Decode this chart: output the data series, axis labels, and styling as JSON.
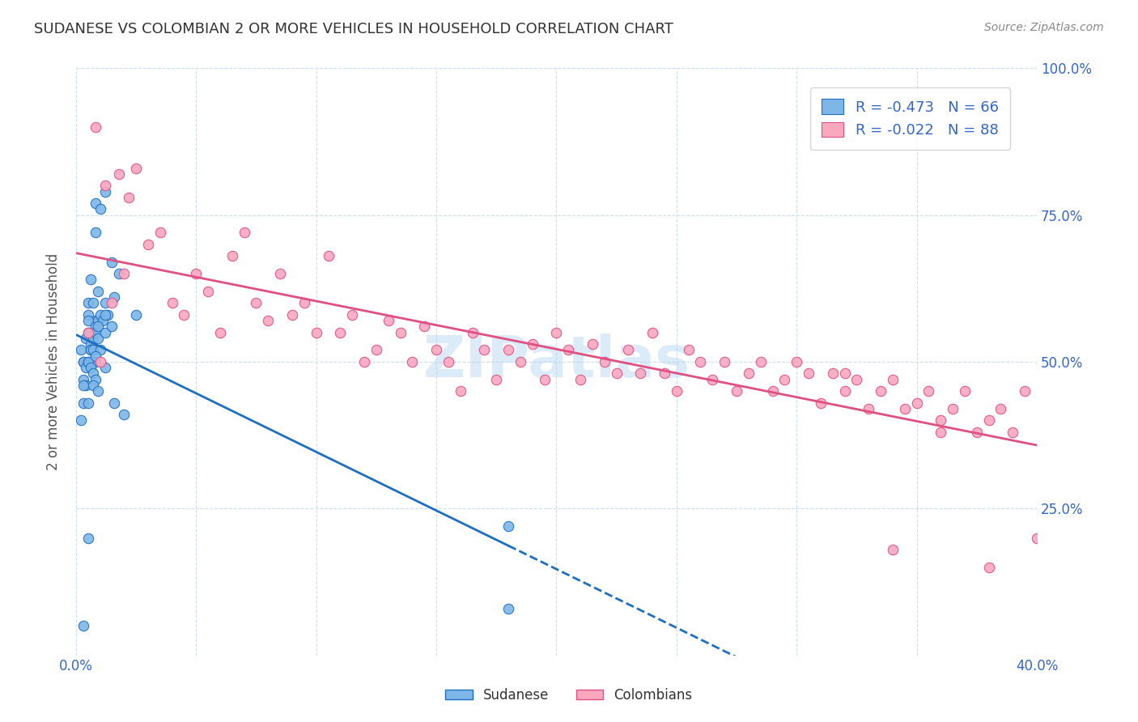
{
  "title": "SUDANESE VS COLOMBIAN 2 OR MORE VEHICLES IN HOUSEHOLD CORRELATION CHART",
  "source": "Source: ZipAtlas.com",
  "xlabel": "",
  "ylabel": "2 or more Vehicles in Household",
  "xlim": [
    0.0,
    0.4
  ],
  "ylim": [
    0.0,
    1.0
  ],
  "xticks": [
    0.0,
    0.05,
    0.1,
    0.15,
    0.2,
    0.25,
    0.3,
    0.35,
    0.4
  ],
  "yticks": [
    0.0,
    0.25,
    0.5,
    0.75,
    1.0
  ],
  "xtick_labels": [
    "0.0%",
    "",
    "",
    "",
    "",
    "",
    "",
    "",
    "40.0%"
  ],
  "ytick_labels": [
    "",
    "25.0%",
    "50.0%",
    "75.0%",
    "100.0%"
  ],
  "legend_blue_r": "R = -0.473",
  "legend_blue_n": "N = 66",
  "legend_pink_r": "R = -0.022",
  "legend_pink_n": "N = 88",
  "blue_color": "#7EB6E8",
  "pink_color": "#F9A8C0",
  "blue_line_color": "#1E6FBF",
  "pink_line_color": "#E05080",
  "watermark": "ZIPatlas",
  "watermark_color": "#B8D8F0",
  "sudanese_x": [
    0.005,
    0.008,
    0.01,
    0.012,
    0.008,
    0.007,
    0.006,
    0.005,
    0.005,
    0.003,
    0.004,
    0.003,
    0.007,
    0.008,
    0.006,
    0.009,
    0.007,
    0.004,
    0.002,
    0.015,
    0.005,
    0.003,
    0.006,
    0.008,
    0.007,
    0.005,
    0.006,
    0.009,
    0.012,
    0.008,
    0.01,
    0.006,
    0.013,
    0.011,
    0.007,
    0.008,
    0.009,
    0.012,
    0.016,
    0.018,
    0.005,
    0.004,
    0.006,
    0.003,
    0.007,
    0.01,
    0.009,
    0.006,
    0.008,
    0.012,
    0.003,
    0.002,
    0.025,
    0.015,
    0.007,
    0.008,
    0.007,
    0.005,
    0.012,
    0.009,
    0.016,
    0.02,
    0.18,
    0.18,
    0.005,
    0.003
  ],
  "sudanese_y": [
    0.6,
    0.77,
    0.76,
    0.79,
    0.72,
    0.55,
    0.64,
    0.55,
    0.58,
    0.5,
    0.54,
    0.5,
    0.6,
    0.57,
    0.53,
    0.62,
    0.52,
    0.49,
    0.52,
    0.67,
    0.57,
    0.47,
    0.55,
    0.56,
    0.54,
    0.5,
    0.52,
    0.57,
    0.6,
    0.55,
    0.58,
    0.5,
    0.58,
    0.57,
    0.5,
    0.5,
    0.56,
    0.58,
    0.61,
    0.65,
    0.5,
    0.46,
    0.52,
    0.46,
    0.52,
    0.52,
    0.54,
    0.49,
    0.51,
    0.55,
    0.43,
    0.4,
    0.58,
    0.56,
    0.48,
    0.47,
    0.46,
    0.43,
    0.49,
    0.45,
    0.43,
    0.41,
    0.22,
    0.08,
    0.2,
    0.05
  ],
  "colombian_x": [
    0.005,
    0.01,
    0.015,
    0.02,
    0.008,
    0.012,
    0.018,
    0.022,
    0.025,
    0.03,
    0.035,
    0.04,
    0.045,
    0.05,
    0.055,
    0.06,
    0.065,
    0.07,
    0.075,
    0.08,
    0.085,
    0.09,
    0.095,
    0.1,
    0.105,
    0.11,
    0.115,
    0.12,
    0.125,
    0.13,
    0.135,
    0.14,
    0.145,
    0.15,
    0.155,
    0.16,
    0.165,
    0.17,
    0.175,
    0.18,
    0.185,
    0.19,
    0.195,
    0.2,
    0.205,
    0.21,
    0.215,
    0.22,
    0.225,
    0.23,
    0.235,
    0.24,
    0.245,
    0.25,
    0.255,
    0.26,
    0.265,
    0.27,
    0.275,
    0.28,
    0.285,
    0.29,
    0.295,
    0.3,
    0.305,
    0.31,
    0.315,
    0.32,
    0.325,
    0.33,
    0.335,
    0.34,
    0.345,
    0.35,
    0.355,
    0.36,
    0.365,
    0.37,
    0.375,
    0.38,
    0.385,
    0.39,
    0.395,
    0.4,
    0.38,
    0.36,
    0.34,
    0.32
  ],
  "colombian_y": [
    0.55,
    0.5,
    0.6,
    0.65,
    0.9,
    0.8,
    0.82,
    0.78,
    0.83,
    0.7,
    0.72,
    0.6,
    0.58,
    0.65,
    0.62,
    0.55,
    0.68,
    0.72,
    0.6,
    0.57,
    0.65,
    0.58,
    0.6,
    0.55,
    0.68,
    0.55,
    0.58,
    0.5,
    0.52,
    0.57,
    0.55,
    0.5,
    0.56,
    0.52,
    0.5,
    0.45,
    0.55,
    0.52,
    0.47,
    0.52,
    0.5,
    0.53,
    0.47,
    0.55,
    0.52,
    0.47,
    0.53,
    0.5,
    0.48,
    0.52,
    0.48,
    0.55,
    0.48,
    0.45,
    0.52,
    0.5,
    0.47,
    0.5,
    0.45,
    0.48,
    0.5,
    0.45,
    0.47,
    0.5,
    0.48,
    0.43,
    0.48,
    0.45,
    0.47,
    0.42,
    0.45,
    0.47,
    0.42,
    0.43,
    0.45,
    0.4,
    0.42,
    0.45,
    0.38,
    0.4,
    0.42,
    0.38,
    0.45,
    0.2,
    0.15,
    0.38,
    0.18,
    0.48
  ]
}
